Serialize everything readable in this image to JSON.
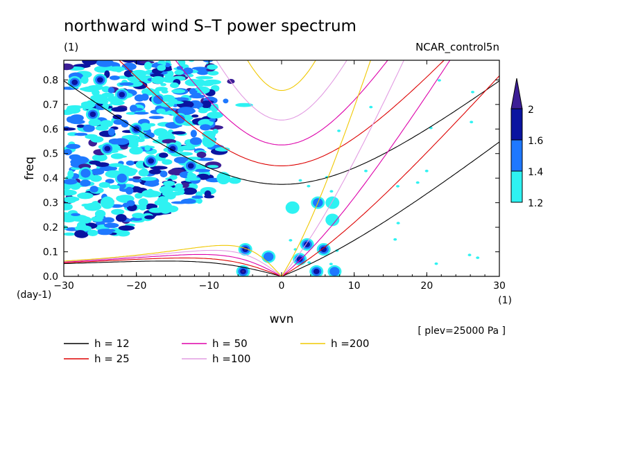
{
  "chart_data": {
    "type": "heatmap",
    "title": "northward wind S–T power spectrum",
    "subtitle_left": "(1)",
    "subtitle_right": "NCAR_control5n",
    "xlabel": "wvn",
    "ylabel": "freq",
    "x_unit": "(1)",
    "y_unit": "(day-1)",
    "note": "[ plev=25000 Pa ]",
    "xlim": [
      -30,
      30
    ],
    "ylim": [
      0,
      0.88
    ],
    "x_ticks": [
      -30,
      -20,
      -10,
      0,
      10,
      20,
      30
    ],
    "y_ticks": [
      0.0,
      0.1,
      0.2,
      0.3,
      0.4,
      0.5,
      0.6,
      0.7,
      0.8
    ],
    "colorbar": {
      "levels": [
        "1.2",
        "1.4",
        "1.6",
        "2"
      ],
      "colors": [
        "#2ef2f2",
        "#1e78ff",
        "#0a14a0",
        "#3c1e96"
      ]
    },
    "series": [
      {
        "name": "h = 12",
        "value": 12,
        "color": "#000000"
      },
      {
        "name": "h = 25",
        "value": 25,
        "color": "#dd0000"
      },
      {
        "name": "h = 50",
        "value": 50,
        "color": "#dd00aa"
      },
      {
        "name": "h =100",
        "value": 100,
        "color": "#e29be2"
      },
      {
        "name": "h =200",
        "value": 200,
        "color": "#f0c800"
      }
    ],
    "blobs": [
      {
        "x": -28.5,
        "y": 0.79,
        "level": 3
      },
      {
        "x": -25,
        "y": 0.8,
        "level": 3
      },
      {
        "x": -22,
        "y": 0.74,
        "level": 3
      },
      {
        "x": -26,
        "y": 0.66,
        "level": 3
      },
      {
        "x": -20,
        "y": 0.6,
        "level": 3
      },
      {
        "x": -15,
        "y": 0.52,
        "level": 3
      },
      {
        "x": -12.5,
        "y": 0.45,
        "level": 3
      },
      {
        "x": -24,
        "y": 0.52,
        "level": 3
      },
      {
        "x": -18,
        "y": 0.47,
        "level": 3
      },
      {
        "x": -22,
        "y": 0.4,
        "level": 2
      },
      {
        "x": -17,
        "y": 0.72,
        "level": 2
      },
      {
        "x": -27,
        "y": 0.42,
        "level": 2
      },
      {
        "x": -14,
        "y": 0.64,
        "level": 2
      },
      {
        "x": -10,
        "y": 0.55,
        "level": 1
      },
      {
        "x": -24,
        "y": 0.3,
        "level": 1
      },
      {
        "x": -16,
        "y": 0.28,
        "level": 1
      },
      {
        "x": -8,
        "y": 0.4,
        "level": 1
      },
      {
        "x": -5,
        "y": 0.11,
        "level": 4
      },
      {
        "x": -5.3,
        "y": 0.02,
        "level": 4
      },
      {
        "x": -1.8,
        "y": 0.08,
        "level": 2
      },
      {
        "x": 2.5,
        "y": 0.07,
        "level": 3
      },
      {
        "x": 3.5,
        "y": 0.13,
        "level": 3
      },
      {
        "x": 5.8,
        "y": 0.11,
        "level": 3
      },
      {
        "x": 4.8,
        "y": 0.02,
        "level": 3
      },
      {
        "x": 7.3,
        "y": 0.02,
        "level": 2
      },
      {
        "x": 7,
        "y": 0.23,
        "level": 1
      },
      {
        "x": 7,
        "y": 0.3,
        "level": 1
      },
      {
        "x": 5,
        "y": 0.3,
        "level": 2
      },
      {
        "x": 1.5,
        "y": 0.28,
        "level": 1
      }
    ]
  }
}
